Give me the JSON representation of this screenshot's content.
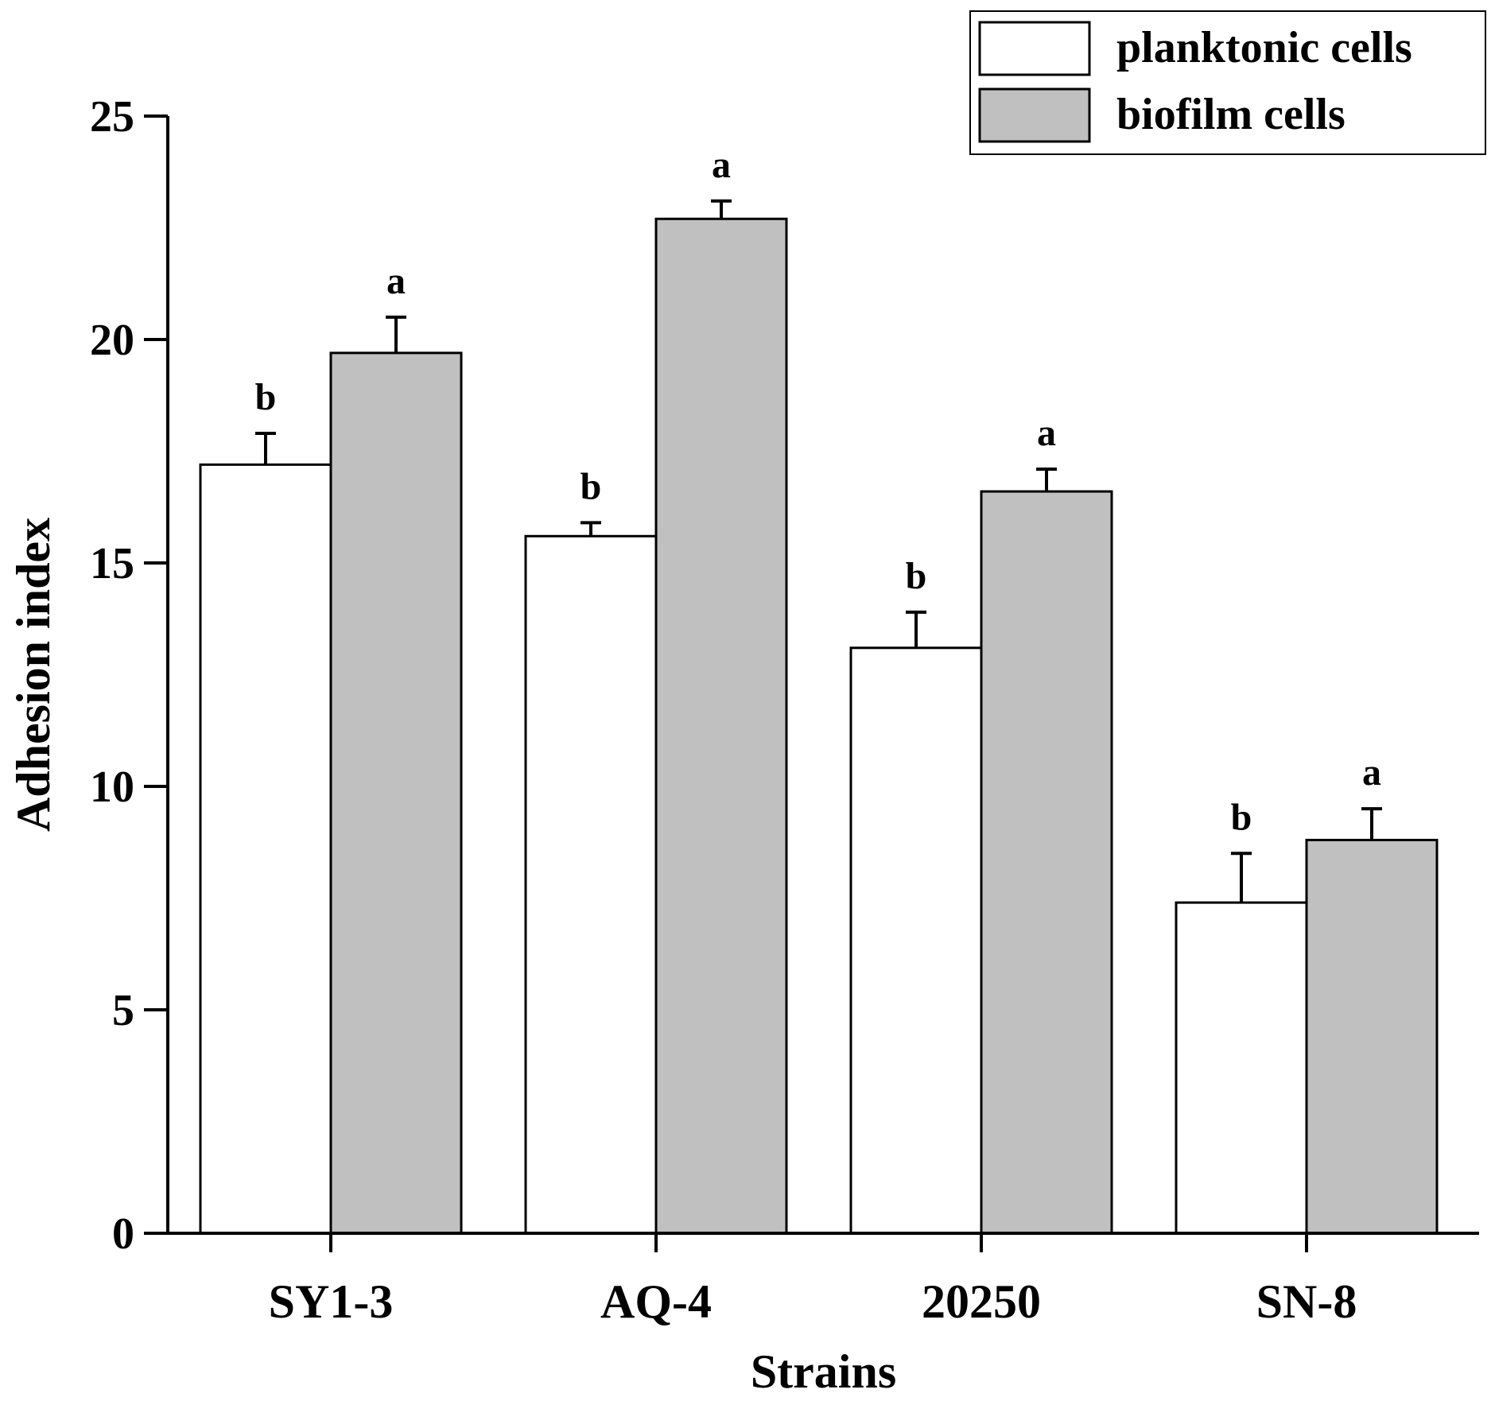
{
  "chart_data": {
    "type": "bar",
    "title": "",
    "xlabel": "Strains",
    "ylabel": "Adhesion index",
    "categories": [
      "SY1-3",
      "AQ-4",
      "20250",
      "SN-8"
    ],
    "ylim": [
      0,
      25
    ],
    "yticks": [
      0,
      5,
      10,
      15,
      20,
      25
    ],
    "grid": false,
    "legend_position": "top-right",
    "series": [
      {
        "name": "planktonic cells",
        "color": "#ffffff",
        "values": [
          17.2,
          15.6,
          13.1,
          7.4
        ],
        "errors": [
          0.7,
          0.3,
          0.8,
          1.1
        ],
        "significance": [
          "b",
          "b",
          "b",
          "b"
        ]
      },
      {
        "name": "biofilm cells",
        "color": "#c0c0c0",
        "values": [
          19.7,
          22.7,
          16.6,
          8.8
        ],
        "errors": [
          0.8,
          0.4,
          0.5,
          0.7
        ],
        "significance": [
          "a",
          "a",
          "a",
          "a"
        ]
      }
    ]
  }
}
